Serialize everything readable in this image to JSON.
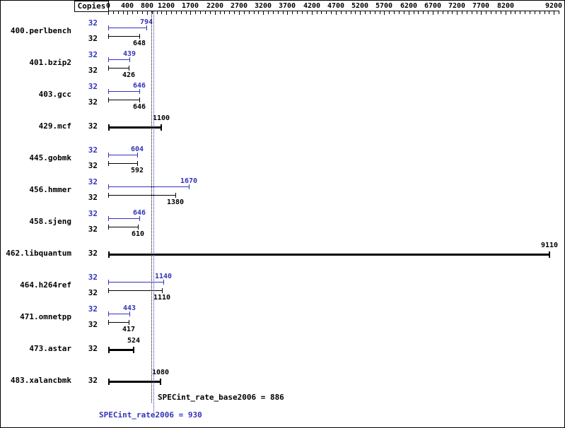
{
  "colors": {
    "peak": "#3333bb",
    "base": "#000000",
    "background": "#ffffff"
  },
  "header": {
    "copies_label": "Copies"
  },
  "chart_data": {
    "type": "bar",
    "orientation": "horizontal",
    "title": "",
    "xlabel": "",
    "ylabel": "",
    "legend_position": "none",
    "grid": false,
    "axis": {
      "min": 0,
      "max": 9300,
      "minor_tick_step": 100,
      "tick_labels": [
        0,
        400,
        800,
        1200,
        1700,
        2200,
        2700,
        3200,
        3700,
        4200,
        4700,
        5200,
        5700,
        6200,
        6700,
        7200,
        7700,
        8200,
        9200
      ]
    },
    "benchmarks": [
      {
        "name": "400.perlbench",
        "copies": 32,
        "style": "pair",
        "peak": 794,
        "base": 648
      },
      {
        "name": "401.bzip2",
        "copies": 32,
        "style": "pair",
        "peak": 439,
        "base": 426
      },
      {
        "name": "403.gcc",
        "copies": 32,
        "style": "pair",
        "peak": 646,
        "base": 646
      },
      {
        "name": "429.mcf",
        "copies": 32,
        "style": "single-bold",
        "value": 1100
      },
      {
        "name": "445.gobmk",
        "copies": 32,
        "style": "pair",
        "peak": 604,
        "base": 592
      },
      {
        "name": "456.hmmer",
        "copies": 32,
        "style": "pair",
        "peak": 1670,
        "base": 1380
      },
      {
        "name": "458.sjeng",
        "copies": 32,
        "style": "pair",
        "peak": 646,
        "base": 610
      },
      {
        "name": "462.libquantum",
        "copies": 32,
        "style": "single-bold",
        "value": 9110
      },
      {
        "name": "464.h264ref",
        "copies": 32,
        "style": "pair",
        "peak": 1140,
        "base": 1110
      },
      {
        "name": "471.omnetpp",
        "copies": 32,
        "style": "pair",
        "peak": 443,
        "base": 417
      },
      {
        "name": "473.astar",
        "copies": 32,
        "style": "single-bold",
        "value": 524
      },
      {
        "name": "483.xalancbmk",
        "copies": 32,
        "style": "single-bold",
        "value": 1080
      }
    ],
    "reference_lines": [
      {
        "name": "base",
        "label": "SPECint_rate_base2006 = 886",
        "value": 886,
        "color": "#000000"
      },
      {
        "name": "peak",
        "label": "SPECint_rate2006 = 930",
        "value": 930,
        "color": "#3333bb"
      }
    ]
  }
}
